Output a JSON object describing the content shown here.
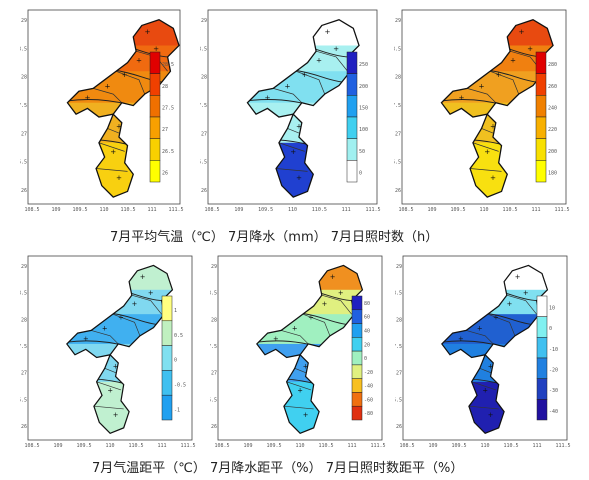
{
  "captions": {
    "row1": "7月平均气温（℃）     7月降水（mm）     7月日照时数（h）",
    "row2": "7月气温距平（℃）     7月降水距平（%）  7月日照时数距平（%）"
  },
  "panels": [
    {
      "name": "temperature",
      "legend_colors": [
        "#e00000",
        "#f04000",
        "#f07000",
        "#f8a000",
        "#f8d000",
        "#ffff00"
      ],
      "legend_labels": [
        "28.5",
        "28",
        "27.5",
        "27",
        "26.5",
        "26"
      ],
      "region_colors": [
        "#e84a10",
        "#f06a10",
        "#f08a10",
        "#f0b020",
        "#f8d010"
      ]
    },
    {
      "name": "precipitation",
      "legend_colors": [
        "#2020c0",
        "#2060e0",
        "#20a0f0",
        "#40d0f0",
        "#a0f0f0",
        "#ffffff"
      ],
      "legend_labels": [
        "250",
        "200",
        "150",
        "100",
        "50",
        "0"
      ],
      "region_colors": [
        "#ffffff",
        "#a8f0f0",
        "#80e0f0",
        "#a8f0f0",
        "#2040d0"
      ]
    },
    {
      "name": "sunshine",
      "legend_colors": [
        "#e00000",
        "#f04000",
        "#f08000",
        "#f8b000",
        "#f8e000",
        "#ffff00"
      ],
      "legend_labels": [
        "280",
        "260",
        "240",
        "220",
        "200",
        "180"
      ],
      "region_colors": [
        "#e84a10",
        "#f08010",
        "#f0a020",
        "#f0c020",
        "#f8e010"
      ]
    },
    {
      "name": "temperature-anomaly",
      "legend_colors": [
        "#ffff80",
        "#c0f0c0",
        "#80e0f0",
        "#40c0f0",
        "#20a0f0"
      ],
      "legend_labels": [
        "1",
        "0.5",
        "0",
        "-0.5",
        "-1"
      ],
      "region_colors": [
        "#c0f0d0",
        "#80d8f0",
        "#40b0f0",
        "#80d8f0",
        "#c0f0d0"
      ]
    },
    {
      "name": "precipitation-anomaly",
      "legend_colors": [
        "#2020c0",
        "#2060e0",
        "#20a0f0",
        "#40d0f0",
        "#a0f0c0",
        "#e0f080",
        "#f8c020",
        "#f07010",
        "#e03010"
      ],
      "legend_labels": [
        "80",
        "60",
        "40",
        "20",
        "0",
        "-20",
        "-40",
        "-60",
        "-80"
      ],
      "region_colors": [
        "#f09020",
        "#e0f080",
        "#a0f0c0",
        "#40a0f0",
        "#40d0f0"
      ]
    },
    {
      "name": "sunshine-anomaly",
      "legend_colors": [
        "#ffffff",
        "#80f0f0",
        "#40c0f0",
        "#2080e0",
        "#2040c0",
        "#2010a0"
      ],
      "legend_labels": [
        "10",
        "0",
        "-10",
        "-20",
        "-30",
        "-40"
      ],
      "region_colors": [
        "#ffffff",
        "#80e0f0",
        "#2060d0",
        "#2080e0",
        "#2020b0"
      ]
    }
  ],
  "axis_ticks": {
    "x": [
      "108.5",
      "109",
      "109.5",
      "110",
      "110.5",
      "111",
      "111.5"
    ],
    "y": [
      "29",
      "28.5",
      "28",
      "27.5",
      "27",
      "26.5",
      "26"
    ]
  }
}
